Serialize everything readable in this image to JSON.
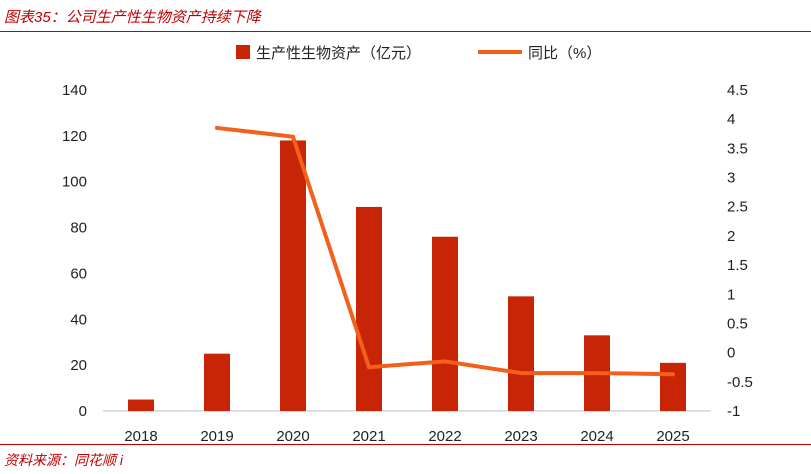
{
  "header": {
    "title": "图表35：公司生产性生物资产持续下降"
  },
  "footer": {
    "source": "资料来源：同花顺 i"
  },
  "colors": {
    "bar": "#c82506",
    "line": "#f2601a",
    "accent": "#c00000",
    "axis": "#bfbfbf"
  },
  "chart_data": {
    "type": "bar",
    "categories": [
      "2018",
      "2019",
      "2020",
      "2021",
      "2022",
      "2023",
      "2024",
      "2025"
    ],
    "series": [
      {
        "name": "生产性生物资产（亿元）",
        "type": "bar",
        "axis": "left",
        "values": [
          5,
          25,
          118,
          89,
          76,
          50,
          33,
          21
        ]
      },
      {
        "name": "同比（%）",
        "type": "line",
        "axis": "right",
        "values": [
          null,
          3.85,
          3.7,
          -0.25,
          -0.15,
          -0.35,
          -0.35,
          -0.37
        ]
      }
    ],
    "y_left": {
      "min": 0,
      "max": 140,
      "ticks": [
        "0",
        "20",
        "40",
        "60",
        "80",
        "100",
        "120",
        "140"
      ]
    },
    "y_right": {
      "min": -1,
      "max": 4.5,
      "ticks": [
        "-1",
        "-0.5",
        "0",
        "0.5",
        "1",
        "1.5",
        "2",
        "2.5",
        "3",
        "3.5",
        "4",
        "4.5"
      ]
    },
    "legend_position": "top",
    "grid": false
  }
}
